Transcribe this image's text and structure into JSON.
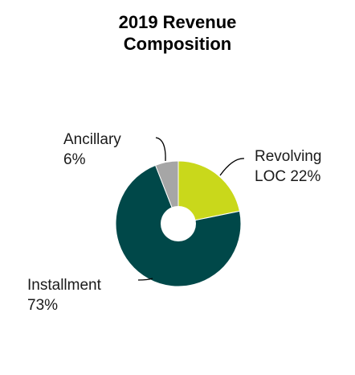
{
  "chart_data": {
    "type": "pie",
    "title_lines": [
      "2019 Revenue",
      "Composition"
    ],
    "slices": [
      {
        "label_lines": [
          "Revolving",
          "LOC 22%"
        ],
        "value": 22,
        "color": "#c9d81b"
      },
      {
        "label_lines": [
          "Installment",
          "73%"
        ],
        "value": 73,
        "color": "#004849"
      },
      {
        "label_lines": [
          "Ancillary",
          "6%"
        ],
        "value": 6,
        "color": "#a6a6a6"
      }
    ]
  }
}
